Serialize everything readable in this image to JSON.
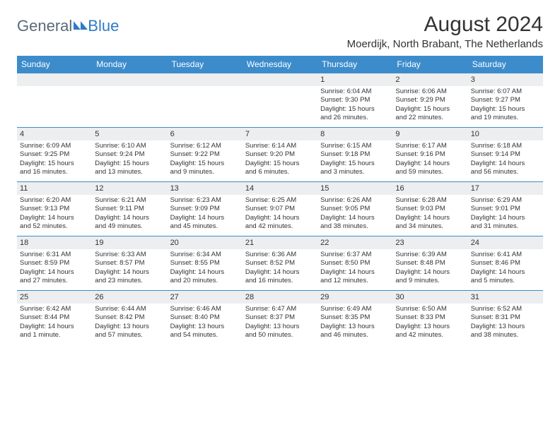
{
  "brand": {
    "general": "General",
    "blue": "Blue"
  },
  "title": "August 2024",
  "location": "Moerdijk, North Brabant, The Netherlands",
  "colors": {
    "header_bg": "#3c8ccc",
    "header_text": "#ffffff",
    "daynum_bg": "#eceeef",
    "border": "#3c8ccc",
    "logo_gray": "#5a6a78",
    "logo_blue": "#2f7bc4"
  },
  "daysOfWeek": [
    "Sunday",
    "Monday",
    "Tuesday",
    "Wednesday",
    "Thursday",
    "Friday",
    "Saturday"
  ],
  "weeks": [
    [
      {
        "num": "",
        "lines": []
      },
      {
        "num": "",
        "lines": []
      },
      {
        "num": "",
        "lines": []
      },
      {
        "num": "",
        "lines": []
      },
      {
        "num": "1",
        "lines": [
          "Sunrise: 6:04 AM",
          "Sunset: 9:30 PM",
          "Daylight: 15 hours",
          "and 26 minutes."
        ]
      },
      {
        "num": "2",
        "lines": [
          "Sunrise: 6:06 AM",
          "Sunset: 9:29 PM",
          "Daylight: 15 hours",
          "and 22 minutes."
        ]
      },
      {
        "num": "3",
        "lines": [
          "Sunrise: 6:07 AM",
          "Sunset: 9:27 PM",
          "Daylight: 15 hours",
          "and 19 minutes."
        ]
      }
    ],
    [
      {
        "num": "4",
        "lines": [
          "Sunrise: 6:09 AM",
          "Sunset: 9:25 PM",
          "Daylight: 15 hours",
          "and 16 minutes."
        ]
      },
      {
        "num": "5",
        "lines": [
          "Sunrise: 6:10 AM",
          "Sunset: 9:24 PM",
          "Daylight: 15 hours",
          "and 13 minutes."
        ]
      },
      {
        "num": "6",
        "lines": [
          "Sunrise: 6:12 AM",
          "Sunset: 9:22 PM",
          "Daylight: 15 hours",
          "and 9 minutes."
        ]
      },
      {
        "num": "7",
        "lines": [
          "Sunrise: 6:14 AM",
          "Sunset: 9:20 PM",
          "Daylight: 15 hours",
          "and 6 minutes."
        ]
      },
      {
        "num": "8",
        "lines": [
          "Sunrise: 6:15 AM",
          "Sunset: 9:18 PM",
          "Daylight: 15 hours",
          "and 3 minutes."
        ]
      },
      {
        "num": "9",
        "lines": [
          "Sunrise: 6:17 AM",
          "Sunset: 9:16 PM",
          "Daylight: 14 hours",
          "and 59 minutes."
        ]
      },
      {
        "num": "10",
        "lines": [
          "Sunrise: 6:18 AM",
          "Sunset: 9:14 PM",
          "Daylight: 14 hours",
          "and 56 minutes."
        ]
      }
    ],
    [
      {
        "num": "11",
        "lines": [
          "Sunrise: 6:20 AM",
          "Sunset: 9:13 PM",
          "Daylight: 14 hours",
          "and 52 minutes."
        ]
      },
      {
        "num": "12",
        "lines": [
          "Sunrise: 6:21 AM",
          "Sunset: 9:11 PM",
          "Daylight: 14 hours",
          "and 49 minutes."
        ]
      },
      {
        "num": "13",
        "lines": [
          "Sunrise: 6:23 AM",
          "Sunset: 9:09 PM",
          "Daylight: 14 hours",
          "and 45 minutes."
        ]
      },
      {
        "num": "14",
        "lines": [
          "Sunrise: 6:25 AM",
          "Sunset: 9:07 PM",
          "Daylight: 14 hours",
          "and 42 minutes."
        ]
      },
      {
        "num": "15",
        "lines": [
          "Sunrise: 6:26 AM",
          "Sunset: 9:05 PM",
          "Daylight: 14 hours",
          "and 38 minutes."
        ]
      },
      {
        "num": "16",
        "lines": [
          "Sunrise: 6:28 AM",
          "Sunset: 9:03 PM",
          "Daylight: 14 hours",
          "and 34 minutes."
        ]
      },
      {
        "num": "17",
        "lines": [
          "Sunrise: 6:29 AM",
          "Sunset: 9:01 PM",
          "Daylight: 14 hours",
          "and 31 minutes."
        ]
      }
    ],
    [
      {
        "num": "18",
        "lines": [
          "Sunrise: 6:31 AM",
          "Sunset: 8:59 PM",
          "Daylight: 14 hours",
          "and 27 minutes."
        ]
      },
      {
        "num": "19",
        "lines": [
          "Sunrise: 6:33 AM",
          "Sunset: 8:57 PM",
          "Daylight: 14 hours",
          "and 23 minutes."
        ]
      },
      {
        "num": "20",
        "lines": [
          "Sunrise: 6:34 AM",
          "Sunset: 8:55 PM",
          "Daylight: 14 hours",
          "and 20 minutes."
        ]
      },
      {
        "num": "21",
        "lines": [
          "Sunrise: 6:36 AM",
          "Sunset: 8:52 PM",
          "Daylight: 14 hours",
          "and 16 minutes."
        ]
      },
      {
        "num": "22",
        "lines": [
          "Sunrise: 6:37 AM",
          "Sunset: 8:50 PM",
          "Daylight: 14 hours",
          "and 12 minutes."
        ]
      },
      {
        "num": "23",
        "lines": [
          "Sunrise: 6:39 AM",
          "Sunset: 8:48 PM",
          "Daylight: 14 hours",
          "and 9 minutes."
        ]
      },
      {
        "num": "24",
        "lines": [
          "Sunrise: 6:41 AM",
          "Sunset: 8:46 PM",
          "Daylight: 14 hours",
          "and 5 minutes."
        ]
      }
    ],
    [
      {
        "num": "25",
        "lines": [
          "Sunrise: 6:42 AM",
          "Sunset: 8:44 PM",
          "Daylight: 14 hours",
          "and 1 minute."
        ]
      },
      {
        "num": "26",
        "lines": [
          "Sunrise: 6:44 AM",
          "Sunset: 8:42 PM",
          "Daylight: 13 hours",
          "and 57 minutes."
        ]
      },
      {
        "num": "27",
        "lines": [
          "Sunrise: 6:46 AM",
          "Sunset: 8:40 PM",
          "Daylight: 13 hours",
          "and 54 minutes."
        ]
      },
      {
        "num": "28",
        "lines": [
          "Sunrise: 6:47 AM",
          "Sunset: 8:37 PM",
          "Daylight: 13 hours",
          "and 50 minutes."
        ]
      },
      {
        "num": "29",
        "lines": [
          "Sunrise: 6:49 AM",
          "Sunset: 8:35 PM",
          "Daylight: 13 hours",
          "and 46 minutes."
        ]
      },
      {
        "num": "30",
        "lines": [
          "Sunrise: 6:50 AM",
          "Sunset: 8:33 PM",
          "Daylight: 13 hours",
          "and 42 minutes."
        ]
      },
      {
        "num": "31",
        "lines": [
          "Sunrise: 6:52 AM",
          "Sunset: 8:31 PM",
          "Daylight: 13 hours",
          "and 38 minutes."
        ]
      }
    ]
  ]
}
